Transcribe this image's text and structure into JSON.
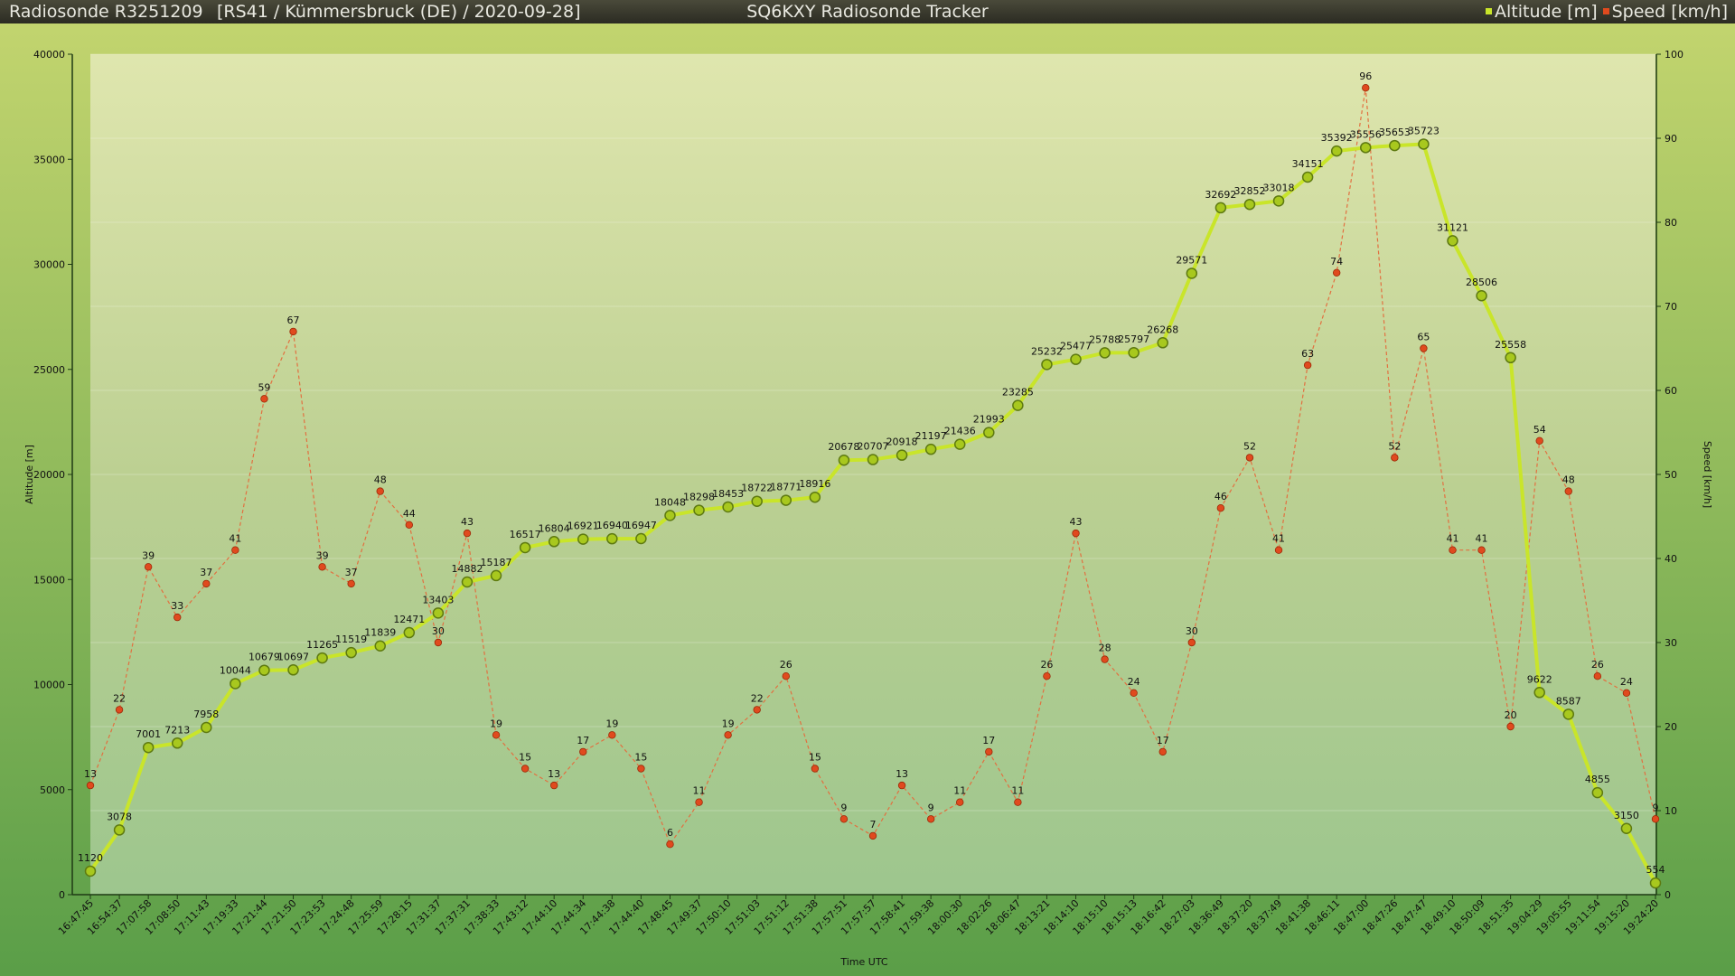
{
  "header": {
    "sonde": "Radiosonde R3251209",
    "info": "[RS41 / Kümmersbruck (DE) / 2020-09-28]",
    "title": "SQ6KXY Radiosonde Tracker",
    "legend_altitude": "Altitude [m]",
    "legend_speed": "Speed [km/h]"
  },
  "colors": {
    "altitude_line": "#c9e52a",
    "altitude_marker": "#a8c81e",
    "speed_line": "#e27040",
    "speed_marker": "#e04a1e"
  },
  "chart_data": {
    "type": "line",
    "xlabel": "Time UTC",
    "ylabel": "Altitude [m]",
    "y2label": "Speed [km/h]",
    "ylim": [
      0,
      40000
    ],
    "yticks": [
      0,
      5000,
      10000,
      15000,
      20000,
      25000,
      30000,
      35000,
      40000
    ],
    "y2lim": [
      0,
      100
    ],
    "y2ticks": [
      0,
      10,
      20,
      30,
      40,
      50,
      60,
      70,
      80,
      90,
      100
    ],
    "grid": true,
    "legend_position": "top-right",
    "categories": [
      "16:47:45",
      "16:54:37",
      "17:07:58",
      "17:08:50",
      "17:11:43",
      "17:19:33",
      "17:21:44",
      "17:21:50",
      "17:23:53",
      "17:24:48",
      "17:25:59",
      "17:28:15",
      "17:31:37",
      "17:37:31",
      "17:38:33",
      "17:43:12",
      "17:44:10",
      "17:44:34",
      "17:44:38",
      "17:44:40",
      "17:48:45",
      "17:49:37",
      "17:50:10",
      "17:51:03",
      "17:51:12",
      "17:51:38",
      "17:57:51",
      "17:57:57",
      "17:58:41",
      "17:59:38",
      "18:00:30",
      "18:02:26",
      "18:06:47",
      "18:13:21",
      "18:14:10",
      "18:15:10",
      "18:15:13",
      "18:16:42",
      "18:27:03",
      "18:36:49",
      "18:37:20",
      "18:37:49",
      "18:41:38",
      "18:46:11",
      "18:47:00",
      "18:47:26",
      "18:47:47",
      "18:49:10",
      "18:50:09",
      "18:51:35",
      "19:04:29",
      "19:05:55",
      "19:11:54",
      "19:15:20",
      "19:24:20"
    ],
    "series": [
      {
        "name": "Altitude [m]",
        "axis": "left",
        "values": [
          1120,
          3078,
          7001,
          7213,
          7958,
          10044,
          10679,
          10697,
          11265,
          11519,
          11839,
          12471,
          13403,
          14882,
          15187,
          16517,
          16804,
          16921,
          16940,
          16947,
          18048,
          18298,
          18453,
          18722,
          18771,
          18916,
          20678,
          20707,
          20918,
          21197,
          21436,
          21993,
          23285,
          25232,
          25477,
          25788,
          25797,
          26268,
          29571,
          32692,
          32852,
          33018,
          34151,
          35392,
          35556,
          35653,
          35723,
          31121,
          28506,
          25558,
          9622,
          8587,
          4855,
          3150,
          554
        ]
      },
      {
        "name": "Speed [km/h]",
        "axis": "right",
        "values": [
          13,
          22,
          39,
          33,
          37,
          41,
          59,
          67,
          39,
          37,
          48,
          44,
          30,
          43,
          19,
          15,
          13,
          17,
          19,
          15,
          6,
          11,
          19,
          22,
          26,
          15,
          9,
          7,
          13,
          9,
          11,
          17,
          11,
          26,
          43,
          28,
          24,
          17,
          30,
          46,
          52,
          41,
          63,
          74,
          96,
          52,
          65,
          41,
          41,
          20,
          54,
          48,
          26,
          24,
          9
        ]
      }
    ]
  }
}
